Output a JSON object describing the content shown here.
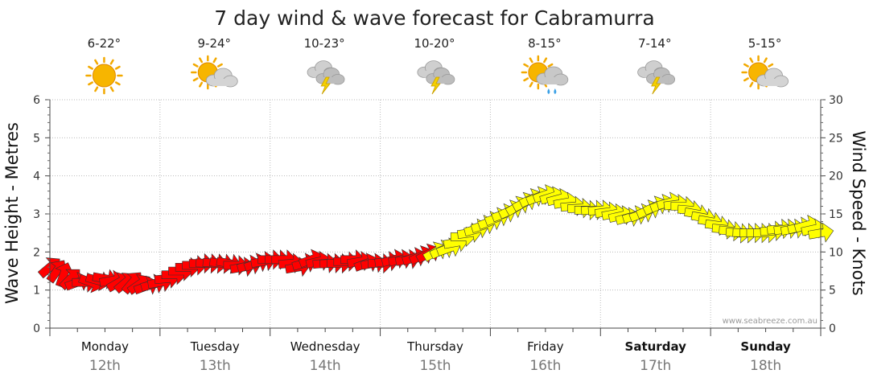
{
  "chart_data": {
    "type": "scatter",
    "title": "7 day wind & wave forecast for Cabramurra",
    "ylabel": "Wave Height - Metres",
    "y2label": "Wind Speed - Knots",
    "ylim": [
      0,
      6
    ],
    "y2lim": [
      0,
      30
    ],
    "yticks": [
      "0",
      "1",
      "2",
      "3",
      "4",
      "5",
      "6"
    ],
    "y2ticks": [
      "0",
      "5",
      "10",
      "15",
      "20",
      "25",
      "30"
    ],
    "grid": true,
    "credit": "www.seabreeze.com.au",
    "colors": {
      "light": "#ff0000",
      "moderate": "#ffff00",
      "outline": "#333333",
      "grid": "#bbbbbb"
    },
    "days": [
      {
        "name": "Monday",
        "date": "12th",
        "temp": "6-22°",
        "icon": "sunny-icon",
        "weekend": false
      },
      {
        "name": "Tuesday",
        "date": "13th",
        "temp": "9-24°",
        "icon": "partly-cloudy-icon",
        "weekend": false
      },
      {
        "name": "Wednesday",
        "date": "14th",
        "temp": "10-23°",
        "icon": "thunderstorm-icon",
        "weekend": false
      },
      {
        "name": "Thursday",
        "date": "15th",
        "temp": "10-20°",
        "icon": "thunderstorm-icon",
        "weekend": false
      },
      {
        "name": "Friday",
        "date": "16th",
        "temp": "8-15°",
        "icon": "shower-icon",
        "weekend": false
      },
      {
        "name": "Saturday",
        "date": "17th",
        "temp": "7-14°",
        "icon": "thunderstorm-icon",
        "weekend": true
      },
      {
        "name": "Sunday",
        "date": "18th",
        "temp": "5-15°",
        "icon": "partly-cloudy-icon",
        "weekend": true
      }
    ],
    "series": [
      {
        "axis": "wind-knots",
        "x_hours": [
          0,
          3,
          6,
          9,
          12,
          15,
          18,
          21,
          24,
          27,
          30,
          33,
          36,
          39,
          42,
          45,
          48,
          51,
          54,
          57,
          60,
          63,
          66,
          69,
          72,
          75,
          78,
          81,
          84,
          87,
          90,
          93,
          96,
          99,
          102,
          105,
          108,
          111,
          114,
          117,
          120,
          123,
          126,
          129,
          132,
          135,
          138,
          141,
          144,
          147,
          150,
          153,
          156,
          159,
          162,
          165,
          168
        ],
        "values": [
          8,
          7,
          6,
          6,
          6.5,
          6,
          6,
          5.5,
          6,
          7,
          8,
          8.5,
          8.5,
          8.5,
          8,
          8.5,
          9,
          9,
          8,
          9,
          8.5,
          8.5,
          9,
          8.5,
          8.5,
          9,
          9,
          9.5,
          10,
          10.5,
          12,
          13,
          14,
          15,
          16,
          17,
          17.5,
          17,
          16,
          15.5,
          15.5,
          15,
          14.5,
          15,
          16,
          16.5,
          16,
          15,
          14,
          13,
          12.5,
          12.5,
          12.5,
          13,
          13,
          13.5,
          12.5
        ],
        "directions_deg": [
          230,
          200,
          250,
          290,
          280,
          240,
          220,
          250,
          260,
          270,
          270,
          270,
          275,
          280,
          260,
          250,
          270,
          270,
          260,
          250,
          265,
          270,
          270,
          250,
          270,
          255,
          260,
          245,
          240,
          250,
          270,
          255,
          250,
          250,
          240,
          245,
          250,
          255,
          265,
          270,
          265,
          260,
          255,
          250,
          245,
          255,
          270,
          280,
          280,
          275,
          275,
          270,
          270,
          265,
          260,
          255,
          260
        ]
      }
    ]
  }
}
